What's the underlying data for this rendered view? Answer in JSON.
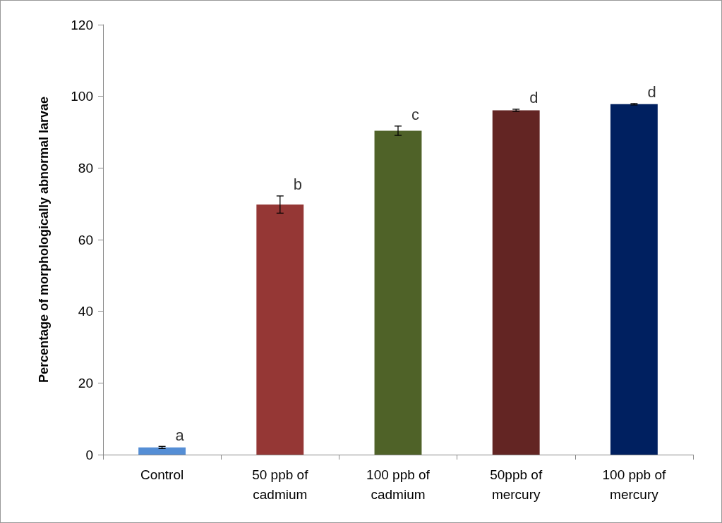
{
  "chart_data": {
    "type": "bar",
    "ylabel": "Percentage of morphologically abnormal larvae",
    "categories": [
      "Control",
      "50 ppb of\ncadmium",
      "100 ppb of\ncadmium",
      "50ppb of\nmercury",
      "100 ppb of\nmercury"
    ],
    "values": [
      2,
      69.8,
      90.4,
      96.1,
      97.8
    ],
    "colors": [
      "#558ed5",
      "#953735",
      "#4f6228",
      "#632523",
      "#002060"
    ],
    "errors": [
      0.3,
      2.4,
      1.3,
      0.3,
      0.2
    ],
    "ylim": [
      0,
      120
    ],
    "yticks": [
      0,
      20,
      40,
      60,
      80,
      100,
      120
    ],
    "grid": false,
    "annotations": [
      "a",
      "b",
      "c",
      "d",
      "d"
    ]
  }
}
